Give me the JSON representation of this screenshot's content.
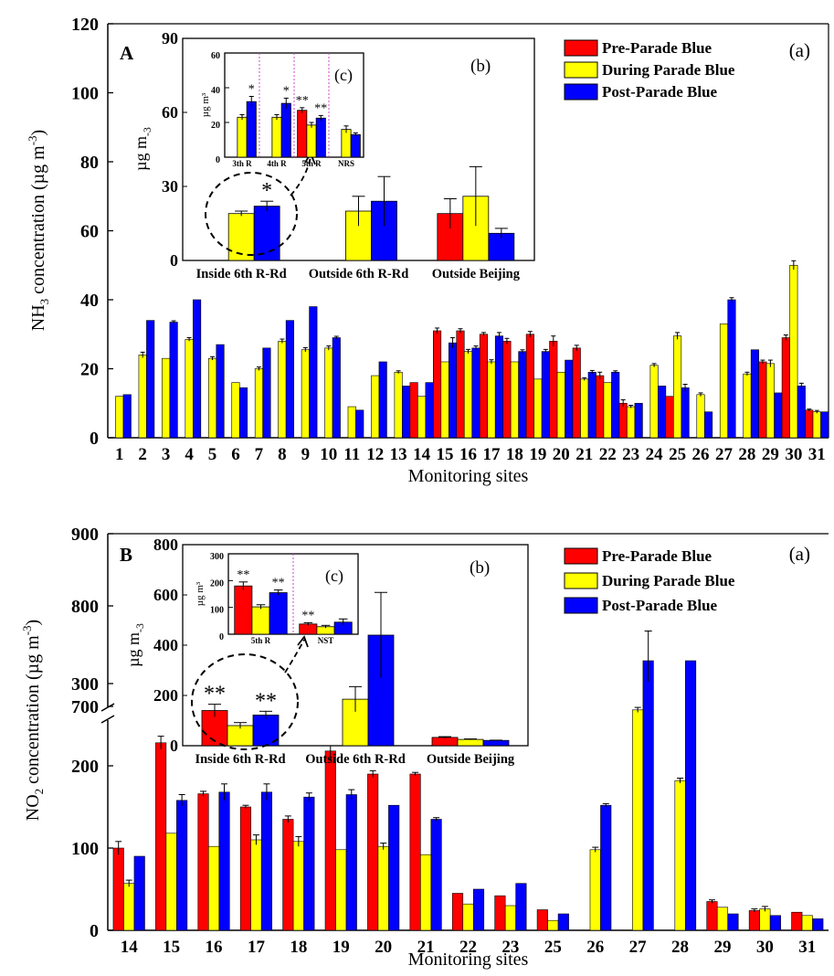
{
  "colors": {
    "pre": "#ff0000",
    "during": "#ffff00",
    "post": "#0000ff",
    "error": "#000000",
    "divider": "#cc33cc"
  },
  "legend": {
    "pre": "Pre-Parade Blue",
    "during": "During Parade Blue",
    "post": "Post-Parade Blue"
  },
  "chart_data": [
    {
      "id": "A",
      "type": "bar",
      "panel_label": "A",
      "corner_label": "(a)",
      "xlabel": "Monitoring sites",
      "ylabel_parts": [
        "NH",
        "3",
        " concentration (µg m",
        "-3",
        ")"
      ],
      "ylim": [
        0,
        120
      ],
      "yticks": [
        "0",
        "20",
        "40",
        "60",
        "80",
        "100",
        "120"
      ],
      "categories": [
        "1",
        "2",
        "3",
        "4",
        "5",
        "6",
        "7",
        "8",
        "9",
        "10",
        "11",
        "12",
        "13",
        "14",
        "15",
        "16",
        "17",
        "18",
        "19",
        "20",
        "21",
        "22",
        "23",
        "24",
        "25",
        "26",
        "27",
        "28",
        "29",
        "30",
        "31"
      ],
      "series": [
        {
          "key": "pre",
          "name": "Pre-Parade Blue",
          "values": [
            null,
            null,
            null,
            null,
            null,
            null,
            null,
            null,
            null,
            null,
            null,
            null,
            null,
            16,
            31,
            31,
            30,
            28,
            30,
            28,
            26,
            18,
            10,
            null,
            12,
            null,
            null,
            null,
            22,
            29,
            8
          ],
          "errors": [
            0,
            0,
            0,
            0,
            0,
            0,
            0,
            0,
            0,
            0,
            0,
            0,
            0,
            0,
            0.8,
            0.6,
            0.5,
            0.8,
            0.8,
            1.5,
            0.8,
            1.0,
            1.0,
            0,
            0,
            0,
            0,
            0,
            0.5,
            0.8,
            0.3
          ]
        },
        {
          "key": "during",
          "name": "During Parade Blue",
          "values": [
            12,
            24,
            23,
            28.5,
            23,
            16,
            20,
            28,
            25.5,
            26,
            9,
            18,
            19,
            12,
            22,
            25,
            22,
            22,
            17,
            19,
            17,
            16,
            9,
            21,
            29.5,
            12.5,
            33,
            18.5,
            21.5,
            50,
            7.5
          ],
          "errors": [
            0,
            0.8,
            0,
            0.5,
            0.5,
            0,
            0.5,
            0.6,
            0.6,
            0.6,
            0,
            0,
            0.4,
            0,
            0,
            0.6,
            0.6,
            0,
            0,
            0,
            0.4,
            0,
            0.4,
            0.5,
            1.0,
            0.5,
            0,
            0.5,
            1.0,
            1.3,
            0.4
          ]
        },
        {
          "key": "post",
          "name": "Post-Parade Blue",
          "values": [
            12.5,
            34,
            33.5,
            40,
            27,
            14.5,
            26,
            34,
            38,
            29,
            8,
            22,
            15,
            16,
            27.5,
            26,
            29.5,
            25,
            25,
            22.5,
            19,
            19,
            10,
            15,
            14.5,
            7.5,
            40,
            25.5,
            13,
            15,
            7.5
          ],
          "errors": [
            0,
            0,
            0.4,
            0,
            0,
            0,
            0,
            0,
            0,
            0.4,
            0,
            0,
            0,
            0,
            1.5,
            0.6,
            1.0,
            0.5,
            0.6,
            0,
            0.5,
            0.4,
            0,
            0,
            1.0,
            0,
            0.6,
            0,
            0,
            0.8,
            0
          ]
        }
      ],
      "inset_b": {
        "label": "(b)",
        "ylim": [
          0,
          90
        ],
        "yticks": [
          "0",
          "30",
          "60",
          "90"
        ],
        "categories": [
          "Inside 6th R-Rd",
          "Outside 6th R-Rd",
          "Outside Beijing"
        ],
        "series": [
          {
            "key": "pre",
            "values": [
              null,
              null,
              19
            ],
            "errors": [
              0,
              0,
              6
            ]
          },
          {
            "key": "during",
            "values": [
              19,
              20,
              26
            ],
            "errors": [
              1,
              6,
              12
            ]
          },
          {
            "key": "post",
            "values": [
              22,
              24,
              11
            ],
            "errors": [
              2,
              10,
              2
            ]
          }
        ],
        "annotations": [
          {
            "cat": 0,
            "series": "post",
            "text": "*"
          }
        ]
      },
      "inset_c": {
        "label": "(c)",
        "ylabel": "µg m³",
        "ylim": [
          0,
          60
        ],
        "yticks": [
          "0",
          "20",
          "40",
          "60"
        ],
        "categories": [
          "3th R",
          "4th R",
          "5th R",
          "NRS"
        ],
        "series": [
          {
            "key": "pre",
            "values": [
              null,
              null,
              27,
              null
            ],
            "errors": [
              0,
              0,
              1.5,
              0
            ]
          },
          {
            "key": "during",
            "values": [
              23,
              23,
              18.5,
              16
            ],
            "errors": [
              1.5,
              1.5,
              1.5,
              2
            ]
          },
          {
            "key": "post",
            "values": [
              32,
              31,
              22.5,
              13
            ],
            "errors": [
              3,
              3,
              1.5,
              1
            ]
          }
        ],
        "annotations": [
          {
            "cat": 0,
            "series": "post",
            "text": "*"
          },
          {
            "cat": 1,
            "series": "post",
            "text": "*"
          },
          {
            "cat": 2,
            "series": "pre",
            "text": "**"
          },
          {
            "cat": 2,
            "series": "post",
            "text": "**"
          }
        ]
      }
    },
    {
      "id": "B",
      "type": "bar",
      "panel_label": "B",
      "corner_label": "(a)",
      "xlabel": "Monitoring sites",
      "ylabel_parts": [
        "NO",
        "2",
        " concentration (µg m",
        "-3",
        ")"
      ],
      "ylim": [
        0,
        900
      ],
      "axis_break": [
        350,
        650
      ],
      "yticks_lower": [
        "0",
        "100",
        "200",
        "300"
      ],
      "yticks_upper": [
        "700",
        "800",
        "900"
      ],
      "categories": [
        "14",
        "15",
        "16",
        "17",
        "18",
        "19",
        "20",
        "21",
        "22",
        "23",
        "25",
        "26",
        "27",
        "28",
        "29",
        "30",
        "31"
      ],
      "series": [
        {
          "key": "pre",
          "name": "Pre-Parade Blue",
          "values": [
            100,
            228,
            166,
            150,
            135,
            218,
            190,
            190,
            45,
            42,
            25,
            null,
            null,
            null,
            35,
            24,
            22
          ],
          "errors": [
            8,
            8,
            3,
            2,
            4,
            12,
            4,
            2,
            0,
            0,
            0,
            0,
            0,
            0,
            2,
            2,
            0
          ]
        },
        {
          "key": "during",
          "values": [
            57,
            118,
            102,
            110,
            108,
            98,
            102,
            92,
            32,
            30,
            12,
            98,
            268,
            182,
            28,
            26,
            18
          ],
          "errors": [
            4,
            0,
            0,
            6,
            6,
            0,
            4,
            0,
            0,
            0,
            0,
            3,
            3,
            3,
            0,
            3,
            0
          ]
        },
        {
          "key": "post",
          "values": [
            90,
            158,
            168,
            168,
            162,
            165,
            152,
            135,
            50,
            57,
            20,
            152,
            750,
            700,
            20,
            18,
            14
          ],
          "errors": [
            0,
            7,
            10,
            10,
            5,
            6,
            0,
            2,
            0,
            0,
            0,
            2,
            25,
            0,
            0,
            0,
            0
          ]
        }
      ],
      "inset_b": {
        "label": "(b)",
        "ylim": [
          0,
          800
        ],
        "yticks": [
          "0",
          "200",
          "400",
          "600",
          "800"
        ],
        "categories": [
          "Inside 6th R-Rd",
          "Outside 6th R-Rd",
          "Outside Beijing"
        ],
        "series": [
          {
            "key": "pre",
            "values": [
              140,
              null,
              33
            ],
            "errors": [
              25,
              0,
              3
            ]
          },
          {
            "key": "during",
            "values": [
              80,
              185,
              25
            ],
            "errors": [
              12,
              50,
              2
            ]
          },
          {
            "key": "post",
            "values": [
              122,
              440,
              21
            ],
            "errors": [
              15,
              170,
              1
            ]
          }
        ],
        "annotations": [
          {
            "cat": 0,
            "series": "pre",
            "text": "**"
          },
          {
            "cat": 0,
            "series": "post",
            "text": "**"
          }
        ]
      },
      "inset_c": {
        "label": "(c)",
        "ylabel": "µg m³",
        "ylim": [
          0,
          300
        ],
        "yticks": [
          "0",
          "100",
          "200",
          "300"
        ],
        "categories": [
          "5th R",
          "NST"
        ],
        "series": [
          {
            "key": "pre",
            "values": [
              180,
              38
            ],
            "errors": [
              15,
              5
            ]
          },
          {
            "key": "during",
            "values": [
              102,
              28
            ],
            "errors": [
              8,
              5
            ]
          },
          {
            "key": "post",
            "values": [
              155,
              45
            ],
            "errors": [
              10,
              12
            ]
          }
        ],
        "annotations": [
          {
            "cat": 0,
            "series": "pre",
            "text": "**"
          },
          {
            "cat": 0,
            "series": "post",
            "text": "**"
          },
          {
            "cat": 1,
            "series": "pre",
            "text": "**"
          }
        ]
      }
    }
  ]
}
